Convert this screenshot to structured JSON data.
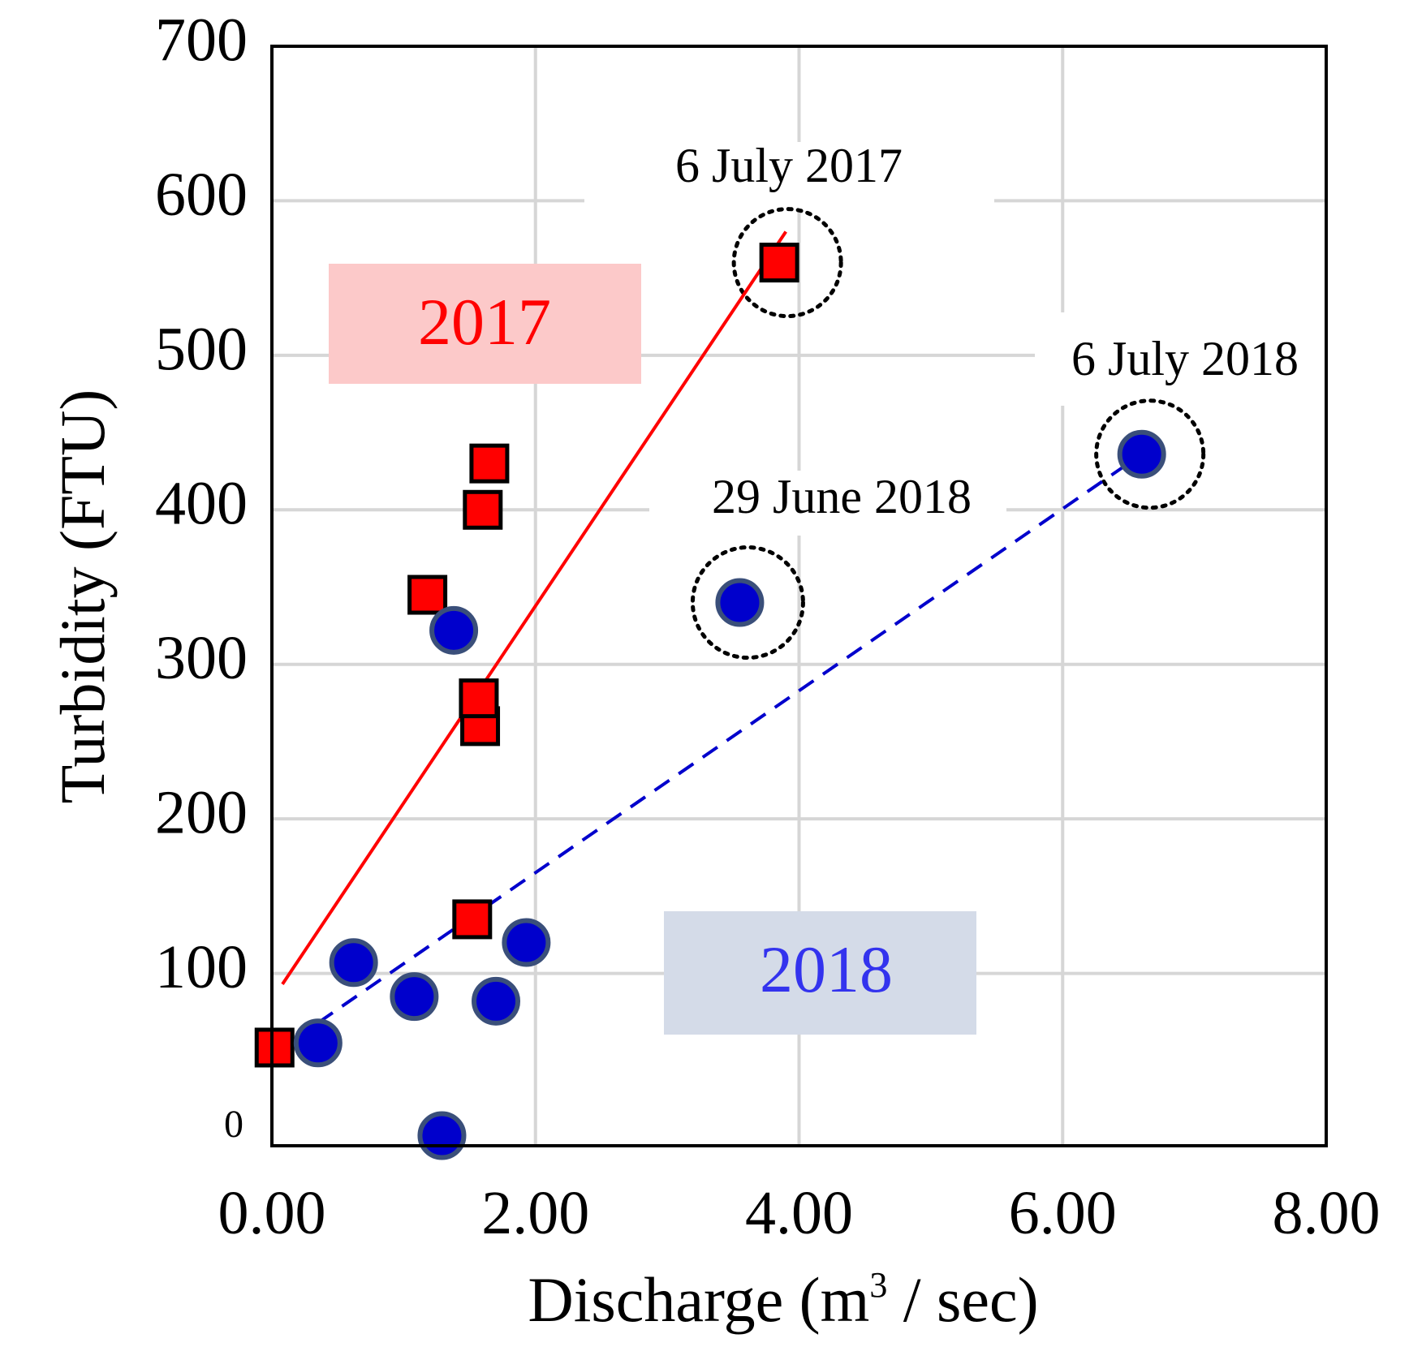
{
  "chart_data": {
    "type": "scatter",
    "title": "",
    "xlabel_main": "Discharge  (m",
    "xlabel_sup": "3",
    "xlabel_tail": " / sec)",
    "ylabel": "Turbidity (FTU)",
    "xlim": [
      0,
      8
    ],
    "ylim": [
      -5,
      700
    ],
    "x_ticks": [
      0,
      2,
      4,
      6,
      8
    ],
    "x_tick_labels": [
      "0.00",
      "2.00",
      "4.00",
      "6.00",
      "8.00"
    ],
    "y_ticks": [
      0,
      100,
      200,
      300,
      400,
      500,
      600,
      700
    ],
    "y_tick_labels": [
      "0",
      "100",
      "200",
      "300",
      "400",
      "500",
      "600",
      "700"
    ],
    "grid": true,
    "series": [
      {
        "name": "2017",
        "marker": "square",
        "color": "#ff0000",
        "label_color": "#ff0000",
        "label_bg": "#fcc9c9",
        "points": [
          {
            "x": 0.02,
            "y": 52
          },
          {
            "x": 1.18,
            "y": 345
          },
          {
            "x": 1.52,
            "y": 135
          },
          {
            "x": 1.58,
            "y": 260
          },
          {
            "x": 1.57,
            "y": 278
          },
          {
            "x": 1.6,
            "y": 400
          },
          {
            "x": 1.65,
            "y": 430
          },
          {
            "x": 3.85,
            "y": 560
          }
        ],
        "trend": {
          "x1": 0.08,
          "y1": 93,
          "x2": 3.9,
          "y2": 580,
          "style": "solid"
        }
      },
      {
        "name": "2018",
        "marker": "circle",
        "color": "#0000cc",
        "label_color": "#3333ee",
        "label_bg": "#d4dbe8",
        "points": [
          {
            "x": 0.35,
            "y": 55
          },
          {
            "x": 0.62,
            "y": 107
          },
          {
            "x": 1.08,
            "y": 85
          },
          {
            "x": 1.29,
            "y": -5
          },
          {
            "x": 1.38,
            "y": 322
          },
          {
            "x": 1.7,
            "y": 82
          },
          {
            "x": 1.93,
            "y": 120
          },
          {
            "x": 3.55,
            "y": 340
          },
          {
            "x": 6.6,
            "y": 436
          }
        ],
        "trend": {
          "x1": 0.35,
          "y1": 68,
          "x2": 6.6,
          "y2": 436,
          "style": "dashed"
        }
      }
    ],
    "annotations": [
      {
        "text": "6 July 2017",
        "x": 3.85,
        "y": 560
      },
      {
        "text": "29 June 2018",
        "x": 3.55,
        "y": 340
      },
      {
        "text": "6 July 2018",
        "x": 6.6,
        "y": 436
      }
    ]
  }
}
